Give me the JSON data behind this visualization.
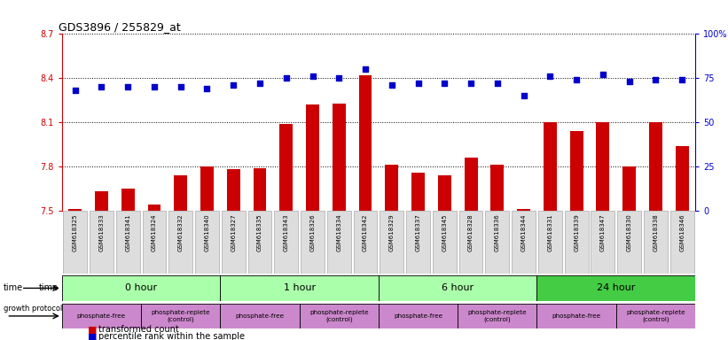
{
  "title": "GDS3896 / 255829_at",
  "samples": [
    "GSM618325",
    "GSM618333",
    "GSM618341",
    "GSM618324",
    "GSM618332",
    "GSM618340",
    "GSM618327",
    "GSM618335",
    "GSM618343",
    "GSM618326",
    "GSM618334",
    "GSM618342",
    "GSM618329",
    "GSM618337",
    "GSM618345",
    "GSM618328",
    "GSM618336",
    "GSM618344",
    "GSM618331",
    "GSM618339",
    "GSM618347",
    "GSM618330",
    "GSM618338",
    "GSM618346"
  ],
  "transformed_count": [
    7.51,
    7.63,
    7.65,
    7.54,
    7.74,
    7.8,
    7.78,
    7.79,
    8.09,
    8.22,
    8.23,
    8.42,
    7.81,
    7.76,
    7.74,
    7.86,
    7.81,
    7.51,
    8.1,
    8.04,
    8.1,
    7.8,
    8.1,
    7.94
  ],
  "percentile_rank": [
    68,
    70,
    70,
    70,
    70,
    69,
    71,
    72,
    75,
    76,
    75,
    80,
    71,
    72,
    72,
    72,
    72,
    65,
    76,
    74,
    77,
    73,
    74,
    74
  ],
  "ylim_left": [
    7.5,
    8.7
  ],
  "ylim_right": [
    0,
    100
  ],
  "yticks_left": [
    7.5,
    7.8,
    8.1,
    8.4,
    8.7
  ],
  "yticks_right": [
    0,
    25,
    50,
    75,
    100
  ],
  "ytick_labels_right": [
    "0",
    "25",
    "50",
    "75",
    "100%"
  ],
  "bar_color": "#cc0000",
  "scatter_color": "#0000cc",
  "background_color": "#ffffff",
  "grid_color": "#000000",
  "time_labels": [
    "0 hour",
    "1 hour",
    "6 hour",
    "24 hour"
  ],
  "time_starts": [
    0,
    6,
    12,
    18
  ],
  "time_ends": [
    6,
    12,
    18,
    24
  ],
  "time_colors": [
    "#aaffaa",
    "#aaffaa",
    "#aaffaa",
    "#44cc44"
  ],
  "proto_starts": [
    0,
    3,
    6,
    9,
    12,
    15,
    18,
    21
  ],
  "proto_ends": [
    3,
    6,
    9,
    12,
    15,
    18,
    21,
    24
  ],
  "proto_labels": [
    "phosphate-free",
    "phosphate-replete\n(control)",
    "phosphate-free",
    "phosphate-replete\n(control)",
    "phosphate-free",
    "phosphate-replete\n(control)",
    "phosphate-free",
    "phosphate-replete\n(control)"
  ],
  "proto_color": "#cc88cc"
}
